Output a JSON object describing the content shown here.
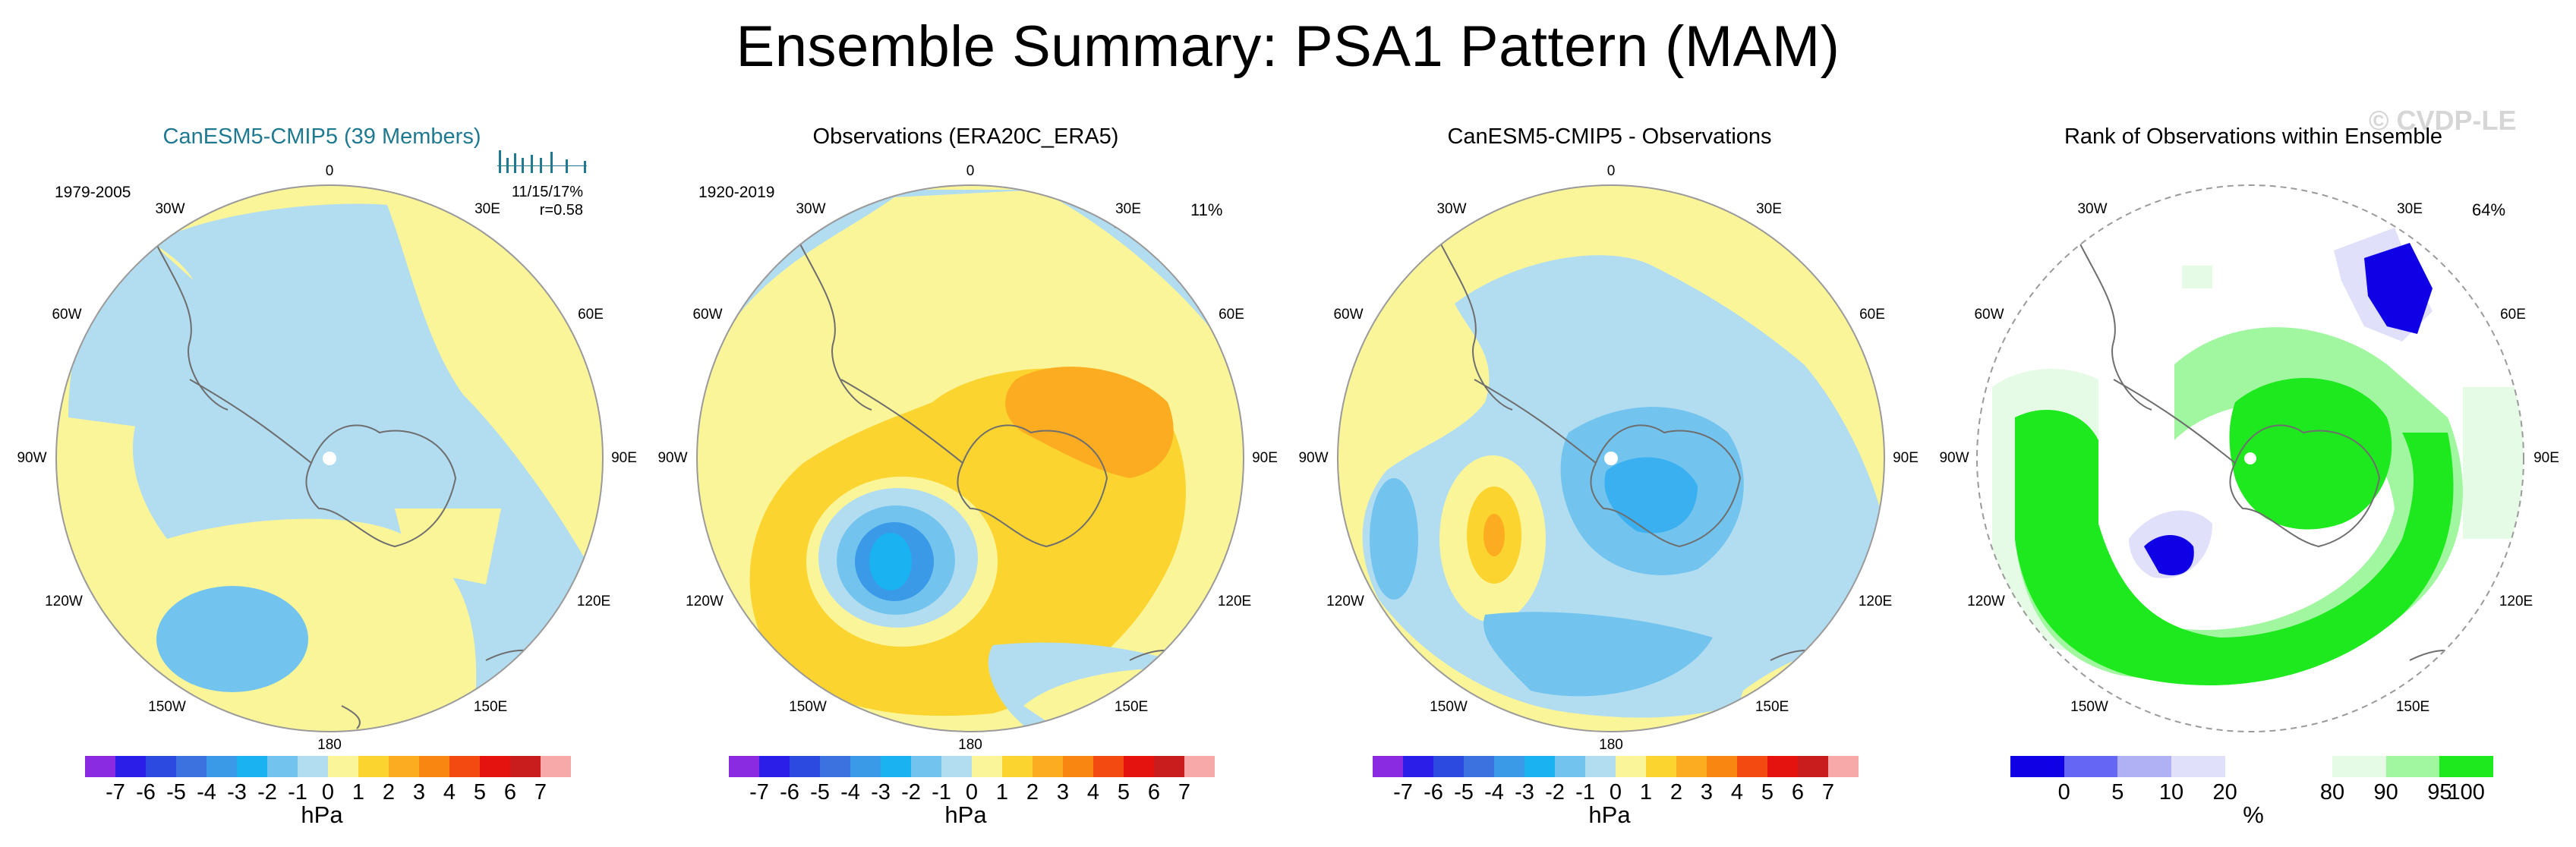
{
  "title": "Ensemble Summary: PSA1 Pattern (MAM)",
  "watermark": "© CVDP-LE",
  "longitude_labels": {
    "top": "0",
    "bottom": "180",
    "l30w": "30W",
    "l60w": "60W",
    "l90w": "90W",
    "l120w": "120W",
    "l150w": "150W",
    "l30e": "30E",
    "l60e": "60E",
    "l90e": "90E",
    "l120e": "120E",
    "l150e": "150E"
  },
  "panels": [
    {
      "title": "CanESM5-CMIP5 (39 Members)",
      "period": "1979-2005",
      "stats": "11/15/17%",
      "corr": "r=0.58",
      "colorbar_unit": "hPa"
    },
    {
      "title": "Observations (ERA20C_ERA5)",
      "period": "1920-2019",
      "pct": "11%",
      "colorbar_unit": "hPa"
    },
    {
      "title": "CanESM5-CMIP5 - Observations",
      "colorbar_unit": "hPa"
    },
    {
      "title": "Rank of Observations within Ensemble",
      "pct": "64%",
      "colorbar_unit": "%"
    }
  ],
  "colors": {
    "diverging": [
      "#8a2be2",
      "#2a1ee8",
      "#2c4ae0",
      "#3c72e0",
      "#3a9ae8",
      "#1ab2f0",
      "#72c4ee",
      "#b2dcf0",
      "#fbf59a",
      "#fcd430",
      "#fcac20",
      "#f98610",
      "#f24a10",
      "#e51310",
      "#c91c1c",
      "#f7a8a8"
    ],
    "rank": [
      "#0f00e6",
      "#6666f5",
      "#b0b0f5",
      "#e0e0fb",
      "#ffffff",
      "#ffffff",
      "#e6fbe6",
      "#a0f7a0",
      "#1ee81e"
    ],
    "coast": "#6e6e6e"
  },
  "chart_data": [
    {
      "type": "polar_contour",
      "title": "CanESM5-CMIP5 (39 Members)",
      "projection": "south-polar stereographic",
      "period": "1979-2005",
      "units": "hPa",
      "contour_levels": [
        -7,
        -6,
        -5,
        -4,
        -3,
        -2,
        -1,
        0,
        1,
        2,
        3,
        4,
        5,
        6,
        7
      ],
      "colorbar_ticks": [
        "-7",
        "-6",
        "-5",
        "-4",
        "-3",
        "-2",
        "-1",
        "0",
        "1",
        "2",
        "3",
        "4",
        "5",
        "6",
        "7"
      ],
      "regions": [
        {
          "range": "0 to 1",
          "location": "South Atlantic, east Pacific and west of Antarctic Peninsula"
        },
        {
          "range": "-1 to 0",
          "location": "broad band across Indian Ocean, Antarctica and Amundsen Sea"
        },
        {
          "range": "-2 to -1",
          "location": "Amundsen-Bellingshausen Sea (~110W)"
        }
      ],
      "annotations": [
        "11/15/17%",
        "r=0.58"
      ]
    },
    {
      "type": "polar_contour",
      "title": "Observations (ERA20C_ERA5)",
      "period": "1920-2019",
      "units": "hPa",
      "contour_levels": [
        -7,
        -6,
        -5,
        -4,
        -3,
        -2,
        -1,
        0,
        1,
        2,
        3,
        4,
        5,
        6,
        7
      ],
      "colorbar_ticks": [
        "-7",
        "-6",
        "-5",
        "-4",
        "-3",
        "-2",
        "-1",
        "0",
        "1",
        "2",
        "3",
        "4",
        "5",
        "6",
        "7"
      ],
      "regions": [
        {
          "range": "-4 to -3",
          "location": "Amundsen Sea low centre (~100W)"
        },
        {
          "range": "1 to 2",
          "location": "ring around low and over Antarctica"
        },
        {
          "range": "2 to 3",
          "location": "East Antarctic plateau"
        },
        {
          "range": "-1 to 0",
          "location": "mid-latitudes"
        }
      ],
      "annotations": [
        "11%"
      ]
    },
    {
      "type": "polar_contour",
      "title": "CanESM5-CMIP5 - Observations",
      "units": "hPa",
      "contour_levels": [
        -7,
        -6,
        -5,
        -4,
        -3,
        -2,
        -1,
        0,
        1,
        2,
        3,
        4,
        5,
        6,
        7
      ],
      "colorbar_ticks": [
        "-7",
        "-6",
        "-5",
        "-4",
        "-3",
        "-2",
        "-1",
        "0",
        "1",
        "2",
        "3",
        "4",
        "5",
        "6",
        "7"
      ],
      "regions": [
        {
          "range": "2 to 3",
          "location": "~100W"
        },
        {
          "range": "-2 to -1",
          "location": "East Antarctica and south Pacific"
        },
        {
          "range": "-3 to -2",
          "location": "East Antarctica"
        },
        {
          "range": "0 to 1",
          "location": "northern edges"
        }
      ]
    },
    {
      "type": "polar_rank",
      "title": "Rank of Observations within Ensemble",
      "units": "%",
      "bins": [
        0,
        5,
        10,
        20,
        80,
        90,
        95,
        100
      ],
      "colorbar_ticks": [
        "0",
        "5",
        "10",
        "20",
        "80",
        "90",
        "95",
        "100"
      ],
      "regions": [
        {
          "range": "95-100",
          "location": "Antarctica and broad arc through Pacific sector"
        },
        {
          "range": "0-5",
          "location": "south-west Indian Ocean and Amundsen Sea"
        }
      ],
      "annotations": [
        "64%"
      ]
    }
  ]
}
